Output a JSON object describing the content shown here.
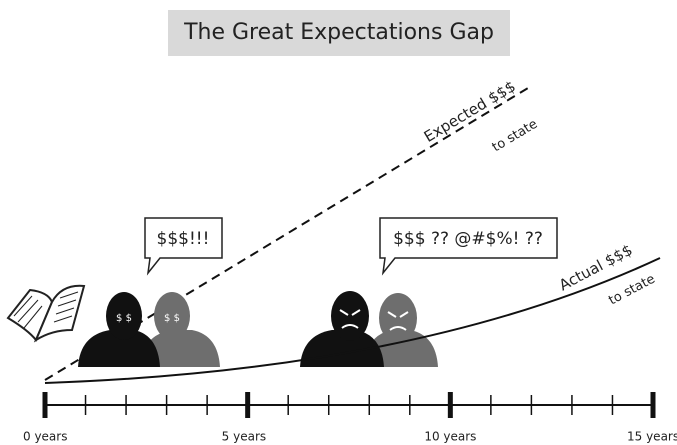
{
  "title": "The Great Expectations Gap",
  "lines": [
    {
      "label": "Expected $$$",
      "sublabel": "to state"
    },
    {
      "label": "Actual $$$",
      "sublabel": "to state"
    }
  ],
  "bubbles": [
    "$$$!!!",
    "$$$ ?? @#$%! ??"
  ],
  "faces": [
    "$ $",
    "$ $"
  ],
  "timeline": {
    "labels": [
      "0 years",
      "5 years",
      "10 years",
      "15 years"
    ]
  }
}
